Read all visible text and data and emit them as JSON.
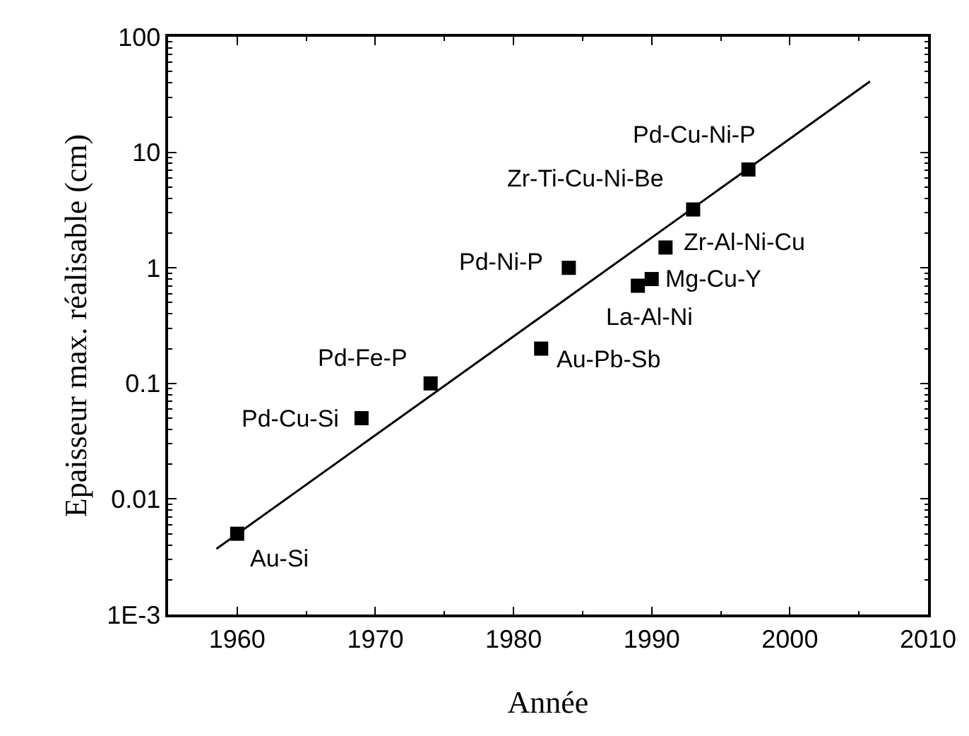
{
  "chart_data": {
    "type": "scatter",
    "xlabel": "Année",
    "ylabel": "Epaisseur max. réalisable (cm)",
    "log": "y",
    "xlim": [
      1955,
      2010
    ],
    "xticks": [
      1960,
      1970,
      1980,
      1990,
      2000,
      2010
    ],
    "ylim": [
      0.001,
      100
    ],
    "yticks": [
      {
        "value": 0.001,
        "label": "1E-3"
      },
      0.01,
      0.1,
      1,
      10,
      100
    ],
    "grid": false,
    "series": [
      {
        "marker": "square",
        "color": "#000000",
        "x": [
          1960,
          1969,
          1974,
          1982,
          1984,
          1989,
          1990,
          1991,
          1993,
          1997
        ],
        "values": [
          0.005,
          0.05,
          0.1,
          0.2,
          1.0,
          0.7,
          0.8,
          1.5,
          3.2,
          7.1
        ]
      },
      {
        "type": "line",
        "marker": "none",
        "color": "#000000",
        "x": [
          1958.5,
          2005.8
        ],
        "values": [
          0.0037,
          41
        ]
      }
    ],
    "annotations": [
      {
        "text": "Au-Si",
        "x": 1960,
        "y": 0.005
      },
      {
        "text": "Pd-Cu-Si",
        "x": 1969,
        "y": 0.05
      },
      {
        "text": "Pd-Fe-P",
        "x": 1974,
        "y": 0.1
      },
      {
        "text": "Au-Pb-Sb",
        "x": 1982,
        "y": 0.2
      },
      {
        "text": "Pd-Ni-P",
        "x": 1984,
        "y": 1.0
      },
      {
        "text": "La-Al-Ni",
        "x": 1989,
        "y": 0.7
      },
      {
        "text": "Mg-Cu-Y",
        "x": 1990,
        "y": 0.8
      },
      {
        "text": "Zr-Al-Ni-Cu",
        "x": 1991,
        "y": 1.5
      },
      {
        "text": "Zr-Ti-Cu-Ni-Be",
        "x": 1993,
        "y": 3.2
      },
      {
        "text": "Pd-Cu-Ni-P",
        "x": 1997,
        "y": 7.1
      }
    ]
  }
}
